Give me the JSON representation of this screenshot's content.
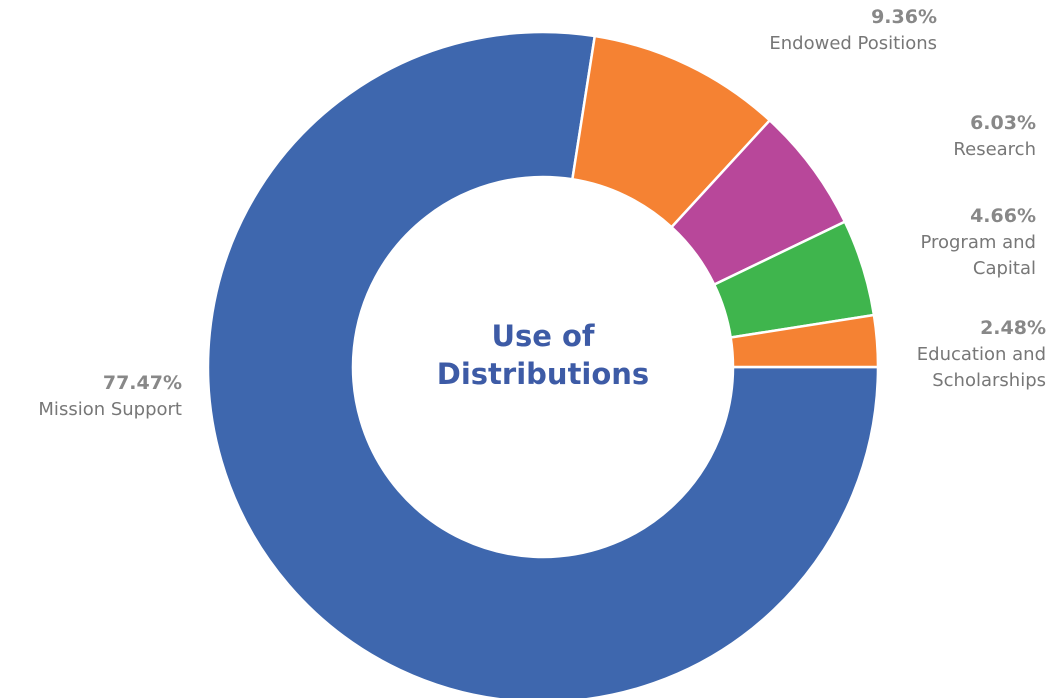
{
  "chart_data": {
    "type": "pie",
    "center_title": [
      "Use of",
      "Distributions"
    ],
    "slices": [
      {
        "name": "Mission Support",
        "name_lines": [
          "Mission Support"
        ],
        "value": 77.47,
        "label": "77.47%",
        "color": "#3e67ae"
      },
      {
        "name": "Endowed Positions",
        "name_lines": [
          "Endowed Positions"
        ],
        "value": 9.36,
        "label": "9.36%",
        "color": "#f58233"
      },
      {
        "name": "Research",
        "name_lines": [
          "Research"
        ],
        "value": 6.03,
        "label": "6.03%",
        "color": "#b8479a"
      },
      {
        "name": "Program and Capital",
        "name_lines": [
          "Program and",
          "Capital"
        ],
        "value": 4.66,
        "label": "4.66%",
        "color": "#3fb54d"
      },
      {
        "name": "Education and Scholarships",
        "name_lines": [
          "Education and",
          "Scholarships"
        ],
        "value": 2.48,
        "label": "2.48%",
        "color": "#f58233"
      }
    ],
    "colors": {
      "center_title": "#3d5ba6",
      "percent_label": "#888888",
      "name_label": "#777777",
      "slice_border": "#ffffff"
    }
  }
}
